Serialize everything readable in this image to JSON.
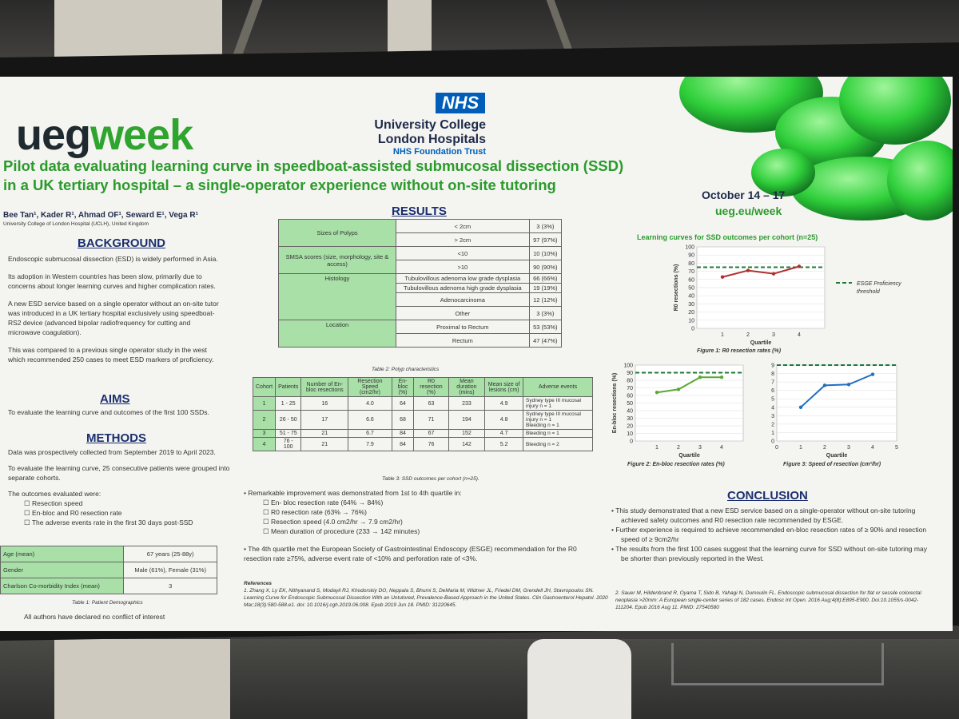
{
  "header": {
    "logo_ueg": "ueg",
    "logo_week": "week",
    "nhs_badge": "NHS",
    "hospital_line1": "University College",
    "hospital_line2": "London Hospitals",
    "hospital_line3": "NHS Foundation Trust",
    "title_line1": "Pilot data evaluating learning curve in speedboat-assisted submucosal dissection (SSD)",
    "title_line2": "in a UK tertiary hospital – a single-operator experience without on-site tutoring",
    "authors": "Bee Tan¹, Kader R¹, Ahmad OF¹, Seward E¹, Vega R¹",
    "affiliation": "University College of London Hospital (UCLH), United Kingdom",
    "event_dates": "October 14 – 17",
    "event_url": "ueg.eu/week"
  },
  "background": {
    "heading": "BACKGROUND",
    "p1": "Endoscopic submucosal dissection (ESD) is widely performed in Asia.",
    "p2": "Its adoption in Western countries has been slow, primarily due to concerns about longer learning curves and higher complication rates.",
    "p3": "A new ESD service based on a single operator without an on-site tutor was introduced in a UK tertiary hospital exclusively using speedboat-RS2 device (advanced bipolar radiofrequency for cutting and microwave coagulation).",
    "p4": "This was compared to a previous single operator study in the west which recommended 250 cases to meet ESD markers of proficiency."
  },
  "aims": {
    "heading": "AIMS",
    "p1": "To evaluate the learning curve and outcomes of the first 100 SSDs."
  },
  "methods": {
    "heading": "METHODS",
    "p1": "Data was prospectively collected from September 2019 to April 2023.",
    "p2": "To evaluate the learning curve, 25 consecutive patients were grouped into separate cohorts.",
    "p3": "The outcomes evaluated were:",
    "items": [
      "Resection speed",
      "En-bloc and R0 resection rate",
      "The adverse events rate in the first 30 days post-SSD"
    ]
  },
  "demographics": {
    "rows": [
      {
        "label": "Age (mean)",
        "value": "67 years (25-88y)"
      },
      {
        "label": "Gender",
        "value": "Male (61%), Female (31%)"
      },
      {
        "label": "Charlson Co-morbidity Index (mean)",
        "value": "3"
      }
    ],
    "caption": "Table 1: Patient Demographics",
    "conflict": "All authors have declared no conflict of interest"
  },
  "results": {
    "heading": "RESULTS",
    "polyp_rows": [
      {
        "group": "Sizes of Polyps",
        "sub": "< 2cm",
        "val": "3 (3%)"
      },
      {
        "group": "",
        "sub": "> 2cm",
        "val": "97 (97%)"
      },
      {
        "group": "SMSA scores (size, morphology, site & access)",
        "sub": "<10",
        "val": "10 (10%)"
      },
      {
        "group": "",
        "sub": ">10",
        "val": "90 (90%)"
      },
      {
        "group": "Histology",
        "sub": "Tubulovillous adenoma low grade dysplasia",
        "val": "66 (66%)"
      },
      {
        "group": "",
        "sub": "Tubulovillous adenoma high grade dysplasia",
        "val": "19 (19%)"
      },
      {
        "group": "",
        "sub": "Adenocarcinoma",
        "val": "12 (12%)"
      },
      {
        "group": "",
        "sub": "Other",
        "val": "3 (3%)"
      },
      {
        "group": "Location",
        "sub": "Proximal to Rectum",
        "val": "53 (53%)"
      },
      {
        "group": "",
        "sub": "Rectum",
        "val": "47 (47%)"
      }
    ],
    "polyp_caption": "Table 2: Polyp characteristics",
    "cohort_headers": [
      "Cohort",
      "Patients",
      "Number of En-bloc resections",
      "Resection Speed (cm2/hr)",
      "En-bloc (%)",
      "R0 resection (%)",
      "Mean duration (mins)",
      "Mean size of lesions (cm)",
      "Adverse events"
    ],
    "cohort_rows": [
      [
        "1",
        "1 - 25",
        "16",
        "4.0",
        "64",
        "63",
        "233",
        "4.9",
        "Sydney type III mucosal injury  n = 1"
      ],
      [
        "2",
        "26 - 50",
        "17",
        "6.6",
        "68",
        "71",
        "194",
        "4.8",
        "Sydney type III mucosal injury  n = 1\nBleeding  n = 1"
      ],
      [
        "3",
        "51 - 75",
        "21",
        "6.7",
        "84",
        "67",
        "152",
        "4.7",
        "Bleeding  n = 1"
      ],
      [
        "4",
        "76 - 100",
        "21",
        "7.9",
        "84",
        "76",
        "142",
        "5.2",
        "Bleeding  n = 2"
      ]
    ],
    "cohort_caption": "Table 3: SSD outcomes per cohort (n=25).",
    "bullet1": "Remarkable improvement was demonstrated from 1st to 4th quartile in:",
    "sub_items": [
      "En- bloc resection rate (64% → 84%)",
      "R0 resection rate (63% → 76%)",
      "Resection speed (4.0 cm2/hr → 7.9 cm2/hr)",
      "Mean duration of procedure (233 → 142 minutes)"
    ],
    "bullet2": "The 4th quartile met the European Society of Gastrointestinal Endoscopy (ESGE) recommendation for the R0 resection rate ≥75%, adverse event rate of <10% and perforation rate of <3%."
  },
  "charts_header": "Learning curves for SSD outcomes per cohort (n=25)",
  "chart_data": [
    {
      "type": "line",
      "title": "Figure 1: R0 resection rates (%)",
      "xlabel": "Quartile",
      "ylabel": "R0 resections (%)",
      "x": [
        1,
        2,
        3,
        4
      ],
      "series": [
        {
          "values": [
            63,
            71,
            67,
            76
          ],
          "color": "#b02e2e"
        }
      ],
      "reference_line": {
        "y": 75,
        "label": "ESGE Proficiency threshold",
        "color": "#1f7a3a"
      },
      "ylim": [
        0,
        100
      ],
      "yticks": [
        0,
        10,
        20,
        30,
        40,
        50,
        60,
        70,
        80,
        90,
        100
      ],
      "xlim": [
        0,
        5
      ],
      "xticks": [
        1,
        2,
        3,
        4
      ]
    },
    {
      "type": "line",
      "title": "Figure 2: En-bloc resection rates (%)",
      "xlabel": "Quartile",
      "ylabel": "En-bloc resections (%)",
      "x": [
        1,
        2,
        3,
        4
      ],
      "series": [
        {
          "values": [
            64,
            68,
            84,
            84
          ],
          "color": "#5aa832"
        }
      ],
      "reference_line": {
        "y": 90,
        "color": "#1f7a3a"
      },
      "ylim": [
        0,
        100
      ],
      "yticks": [
        0,
        10,
        20,
        30,
        40,
        50,
        60,
        70,
        80,
        90,
        100
      ],
      "xlim": [
        0,
        5
      ],
      "xticks": [
        1,
        2,
        3,
        4
      ]
    },
    {
      "type": "line",
      "title": "Figure 3: Speed of resection (cm²/hr)",
      "xlabel": "Quartile",
      "ylabel": "Speed of resection (cm²/hr)",
      "x": [
        1,
        2,
        3,
        4
      ],
      "series": [
        {
          "values": [
            4.0,
            6.6,
            6.7,
            7.9
          ],
          "color": "#1f6fc2"
        }
      ],
      "reference_line": {
        "y": 9,
        "color": "#1f7a3a"
      },
      "ylim": [
        0,
        9
      ],
      "yticks": [
        0,
        1,
        2,
        3,
        4,
        5,
        6,
        7,
        8,
        9
      ],
      "xlim": [
        0,
        5
      ],
      "xticks": [
        0,
        1,
        2,
        3,
        4,
        5
      ]
    }
  ],
  "conclusion": {
    "heading": "CONCLUSION",
    "items": [
      "This study demonstrated that a new ESD service based on a single-operator without on-site tutoring achieved safety outcomes and R0 resection rate recommended by ESGE.",
      "Further experience is required to achieve recommended en-bloc resection rates of ≥ 90% and resection speed of ≥ 9cm2/hr",
      "The results from the first 100 cases suggest that the learning curve for SSD without on-site tutoring may be shorter than previously reported in the West."
    ]
  },
  "references": {
    "heading": "References",
    "ref1": "1.   Zhang X, Ly EK, Nithyanand S, Modayil RJ, Khodorskiy DO, Neppala S, Bhumi S, DeMaria M, Widmer JL, Friedel DM, Grendell JH, Stavropoulos SN. Learning Curve for Endoscopic Submucosal Dissection With an Untutored, Prevalence-Based Approach in the United States. Clin Gastroenterol Hepatol. 2020 Mar;18(3):580-588.e1. doi: 10.1016/j.cgh.2019.06.008. Epub 2019 Jun 18. PMID: 31220645.",
    "ref2": "2. Sauer M, Hildenbrand R, Oyama T, Sido B, Yahagi N, Dumoulin FL. Endoscopic submucosal dissection for flat or sessile colorectal neoplasia >20mm: A European single-center series of 182 cases. Endosc Int Open. 2016 Aug;4(8):E895-E900. Doi:10.1055/s-0042-111204. Epub 2016 Aug 11. PMID: 27540580"
  }
}
